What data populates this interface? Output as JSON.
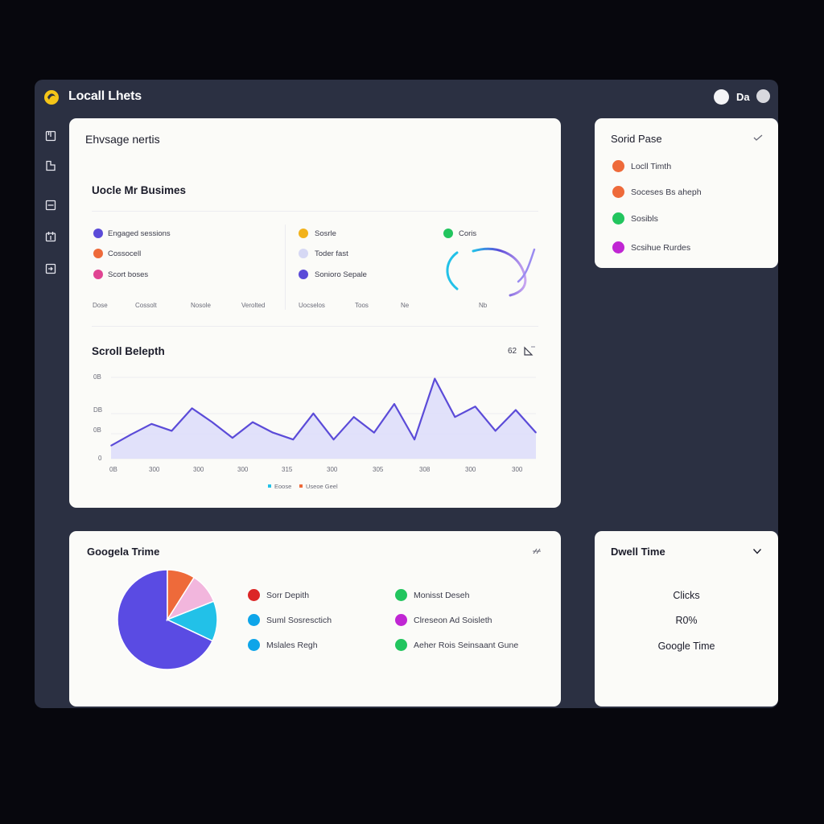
{
  "app": {
    "title": "Locall Lhets",
    "top_text": "Da"
  },
  "sidebar": {
    "items": [
      {
        "icon": "bookmark-icon"
      },
      {
        "icon": "file-icon"
      },
      {
        "icon": "list-icon"
      },
      {
        "icon": "calendar-icon"
      },
      {
        "icon": "export-icon"
      }
    ]
  },
  "main_card": {
    "header": "Ehvsage nertis",
    "section_title": "Uocle Mr Busimes",
    "legend_col1": [
      "Engaged sessions",
      "Cossocell",
      "Scort boses"
    ],
    "legend_col2": [
      "Sosrle",
      "Toder fast",
      "Sonioro Sepale"
    ],
    "legend_col3": [
      "Coris"
    ],
    "footer_labels": [
      "Dose",
      "Cossolt",
      "Nosole",
      "Verolted",
      "Uocselos",
      "Toos",
      "Ne",
      "Nb"
    ],
    "scroll_title": "Scroll Belepth",
    "scroll_toolbar": "62",
    "y_ticks": [
      "0B",
      "DB",
      "0B",
      "0"
    ],
    "x_ticks": [
      "0B",
      "300",
      "300",
      "300",
      "315",
      "300",
      "305",
      "308",
      "300",
      "300"
    ],
    "legend": [
      "Eoose",
      "Useoe Geel"
    ]
  },
  "chart_data": {
    "type": "area",
    "title": "Scroll Belepth",
    "values": [
      15,
      28,
      40,
      32,
      58,
      42,
      24,
      42,
      30,
      22,
      52,
      22,
      48,
      30,
      63,
      22,
      92,
      48,
      60,
      32,
      56,
      30
    ],
    "ylim": [
      0,
      100
    ],
    "grid": true,
    "legend_position": "bottom"
  },
  "sessions_card": {
    "title": "Sorid Pase",
    "items": [
      "Locll Timth",
      "Soceses Bs aheph",
      "Sosibls",
      "Scsihue Rurdes"
    ]
  },
  "pie_card": {
    "title": "Googela Trime",
    "legend_col1": [
      "Sorr Depith",
      "Suml Sosresctich",
      "Mslales Regh"
    ],
    "legend_col2": [
      "Monisst Deseh",
      "Clreseon Ad Soisleth",
      "Aeher Rois Seinsaant Gune"
    ]
  },
  "pie_chart": {
    "slices": [
      {
        "value": 68,
        "color": "#5a4be3"
      },
      {
        "value": 9,
        "color": "#ee6a3a"
      },
      {
        "value": 10,
        "color": "#f2b6dd"
      },
      {
        "value": 13,
        "color": "#22c1e8"
      }
    ]
  },
  "dwell_card": {
    "title": "Dwell Time",
    "lines": [
      "Clicks",
      "R0%",
      "Google Time"
    ]
  },
  "colors": {
    "accent": "#5b4bd8",
    "background": "#07070d",
    "app_frame": "#2b3042",
    "card": "#fbfbf8"
  }
}
